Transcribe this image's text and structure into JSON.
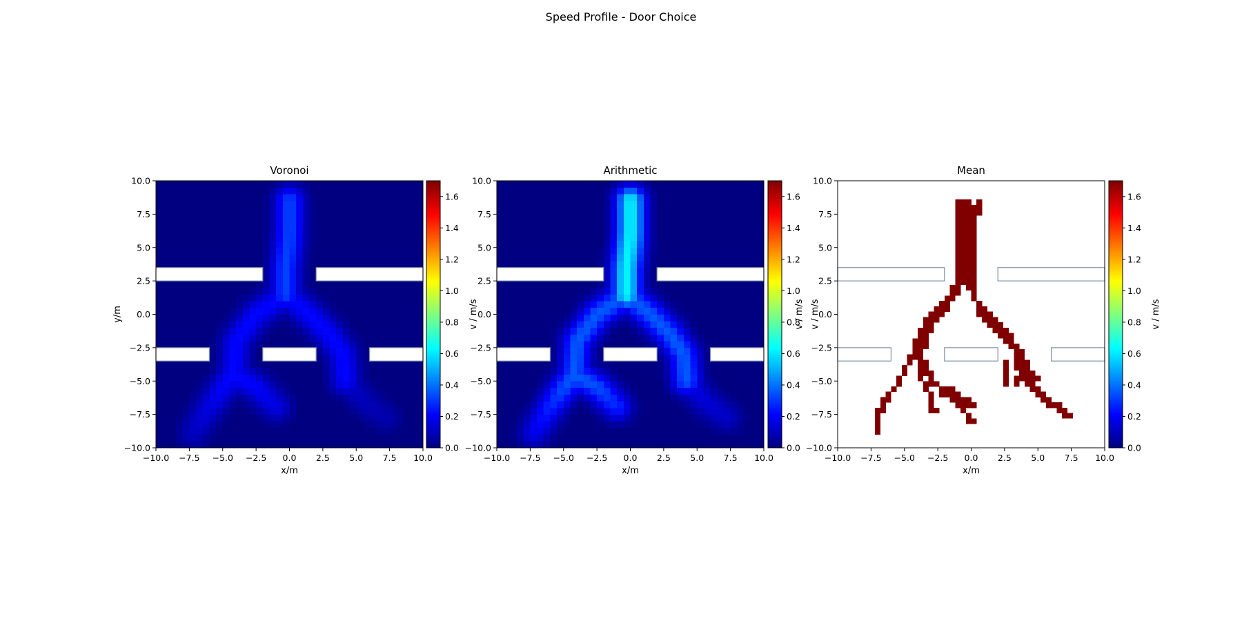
{
  "figure": {
    "suptitle": "Speed Profile - Door Choice"
  },
  "colors": {
    "colormap": "jet",
    "obstacle_edge": "#7f8fa6",
    "obstacle_fill_heatmap": "#ffffff",
    "background": "#ffffff"
  },
  "chart_data": [
    {
      "type": "heatmap",
      "title": "Voronoi",
      "xlabel": "x/m",
      "ylabel": "y/m",
      "colorbar_label": "v / m/s",
      "xlim": [
        -10,
        10
      ],
      "ylim": [
        -10,
        10
      ],
      "clim": [
        0,
        1.7
      ],
      "colorbar_ticks": [
        "0.0",
        "0.2",
        "0.4",
        "0.6",
        "0.8",
        "1.0",
        "1.2",
        "1.4",
        "1.6"
      ],
      "xticks": [
        "−10.0",
        "−7.5",
        "−5.0",
        "−2.5",
        "0.0",
        "2.5",
        "5.0",
        "7.5",
        "10.0"
      ],
      "yticks": [
        "−10.0",
        "−7.5",
        "−5.0",
        "−2.5",
        "0.0",
        "2.5",
        "5.0",
        "7.5",
        "10.0"
      ],
      "obstacles_filled": true,
      "trunk_peak_speed": 0.32,
      "branch_speed": 0.22,
      "tail_speed": 0.12
    },
    {
      "type": "heatmap",
      "title": "Arithmetic",
      "xlabel": "x/m",
      "ylabel": "",
      "colorbar_label": "v / m/s",
      "xlim": [
        -10,
        10
      ],
      "ylim": [
        -10,
        10
      ],
      "clim": [
        0,
        1.7
      ],
      "colorbar_ticks": [
        "0.0",
        "0.2",
        "0.4",
        "0.6",
        "0.8",
        "1.0",
        "1.2",
        "1.4",
        "1.6"
      ],
      "xticks": [
        "−10.0",
        "−7.5",
        "−5.0",
        "−2.5",
        "0.0",
        "2.5",
        "5.0",
        "7.5",
        "10.0"
      ],
      "yticks": [
        "−10.0",
        "−7.5",
        "−5.0",
        "−2.5",
        "0.0",
        "2.5",
        "5.0",
        "7.5",
        "10.0"
      ],
      "obstacles_filled": true,
      "trunk_peak_speed": 0.62,
      "branch_speed": 0.36,
      "tail_speed": 0.18
    },
    {
      "type": "heatmap",
      "title": "Mean",
      "xlabel": "x/m",
      "ylabel": "v / m/s",
      "colorbar_label": "v / m/s",
      "xlim": [
        -10,
        10
      ],
      "ylim": [
        -10,
        10
      ],
      "clim": [
        0,
        1.7
      ],
      "colorbar_ticks": [
        "0.0",
        "0.2",
        "0.4",
        "0.6",
        "0.8",
        "1.0",
        "1.2",
        "1.4",
        "1.6"
      ],
      "xticks": [
        "−10.0",
        "−7.5",
        "−5.0",
        "−2.5",
        "0.0",
        "2.5",
        "5.0",
        "7.5",
        "10.0"
      ],
      "yticks": [
        "−10.0",
        "−7.5",
        "−5.0",
        "−2.5",
        "0.0",
        "2.5",
        "5.0",
        "7.5",
        "10.0"
      ],
      "obstacles_filled": false,
      "cell_value": 1.7
    }
  ],
  "geometry_world": {
    "grid_n": 40,
    "obstacles": [
      {
        "x0": -10,
        "x1": -2,
        "y0": 2.5,
        "y1": 3.5
      },
      {
        "x0": 2,
        "x1": 10,
        "y0": 2.5,
        "y1": 3.5
      },
      {
        "x0": -10,
        "x1": -6,
        "y0": -3.5,
        "y1": -2.5
      },
      {
        "x0": -2,
        "x1": 2,
        "y0": -3.5,
        "y1": -2.5
      },
      {
        "x0": 6,
        "x1": 10,
        "y0": -3.5,
        "y1": -2.5
      }
    ],
    "paths": [
      {
        "points": [
          [
            0,
            8.5
          ],
          [
            0,
            6
          ],
          [
            -0.3,
            3.5
          ],
          [
            -0.3,
            1.5
          ]
        ],
        "role": "trunk"
      },
      {
        "points": [
          [
            -0.3,
            1.5
          ],
          [
            -2.5,
            0
          ],
          [
            -4,
            -2
          ],
          [
            -4.2,
            -4.5
          ],
          [
            -6,
            -7
          ],
          [
            -7.2,
            -9
          ]
        ],
        "role": "branch"
      },
      {
        "points": [
          [
            -4.2,
            -4.5
          ],
          [
            -2.5,
            -5.5
          ],
          [
            -1,
            -7
          ]
        ],
        "role": "branch"
      },
      {
        "points": [
          [
            -0.3,
            1.5
          ],
          [
            1.5,
            0
          ],
          [
            3,
            -1.5
          ],
          [
            4,
            -3
          ],
          [
            4.2,
            -5
          ]
        ],
        "role": "branch"
      },
      {
        "points": [
          [
            4.2,
            -5
          ],
          [
            5.8,
            -6.8
          ],
          [
            7.2,
            -7.8
          ]
        ],
        "role": "tail"
      }
    ],
    "mean_cells": [
      [
        -1.2,
        8.2
      ],
      [
        -0.8,
        8.2
      ],
      [
        -0.4,
        8.2
      ],
      [
        0.4,
        8.2
      ],
      [
        -1.2,
        7.8
      ],
      [
        -0.8,
        7.8
      ],
      [
        -0.4,
        7.8
      ],
      [
        0,
        7.8
      ],
      [
        0.4,
        7.8
      ],
      [
        -1.2,
        7.4
      ],
      [
        -0.8,
        7.4
      ],
      [
        -0.4,
        7.4
      ],
      [
        0,
        7.4
      ],
      [
        0.4,
        7.4
      ],
      [
        -1.2,
        7.0
      ],
      [
        -0.8,
        7.0
      ],
      [
        -0.4,
        7.0
      ],
      [
        0,
        7.0
      ],
      [
        -1.2,
        6.6
      ],
      [
        -0.8,
        6.6
      ],
      [
        -0.4,
        6.6
      ],
      [
        0,
        6.6
      ],
      [
        -1.2,
        6.2
      ],
      [
        -0.8,
        6.2
      ],
      [
        -0.4,
        6.2
      ],
      [
        0,
        6.2
      ],
      [
        -1.2,
        5.8
      ],
      [
        -0.8,
        5.8
      ],
      [
        -0.4,
        5.8
      ],
      [
        0,
        5.8
      ],
      [
        -1.2,
        5.4
      ],
      [
        -0.8,
        5.4
      ],
      [
        -0.4,
        5.4
      ],
      [
        0,
        5.4
      ],
      [
        -1.2,
        5.0
      ],
      [
        -0.8,
        5.0
      ],
      [
        -0.4,
        5.0
      ],
      [
        0,
        5.0
      ],
      [
        -1.2,
        4.6
      ],
      [
        -0.8,
        4.6
      ],
      [
        -0.4,
        4.6
      ],
      [
        0,
        4.6
      ],
      [
        -1.2,
        4.2
      ],
      [
        -0.8,
        4.2
      ],
      [
        -0.4,
        4.2
      ],
      [
        0,
        4.2
      ],
      [
        -1.2,
        3.8
      ],
      [
        -0.8,
        3.8
      ],
      [
        -0.4,
        3.8
      ],
      [
        0,
        3.8
      ],
      [
        -1.2,
        3.4
      ],
      [
        -0.8,
        3.4
      ],
      [
        -0.4,
        3.4
      ],
      [
        0,
        3.4
      ],
      [
        -1.2,
        3.0
      ],
      [
        -0.8,
        3.0
      ],
      [
        -0.4,
        3.0
      ],
      [
        0,
        3.0
      ],
      [
        -1.2,
        2.6
      ],
      [
        -0.8,
        2.6
      ],
      [
        -0.4,
        2.6
      ],
      [
        0,
        2.6
      ],
      [
        -1.2,
        2.2
      ],
      [
        -0.8,
        2.2
      ],
      [
        -0.4,
        2.2
      ],
      [
        0,
        2.2
      ],
      [
        -1.6,
        1.8
      ],
      [
        -1.2,
        1.8
      ],
      [
        -0.4,
        1.8
      ],
      [
        0,
        1.8
      ],
      [
        -1.6,
        1.4
      ],
      [
        -1.2,
        1.4
      ],
      [
        0,
        1.4
      ],
      [
        -2.0,
        1.0
      ],
      [
        -1.6,
        1.0
      ],
      [
        0,
        1.0
      ],
      [
        -2.4,
        0.6
      ],
      [
        -2.0,
        0.6
      ],
      [
        0.4,
        0.6
      ],
      [
        -2.8,
        0.2
      ],
      [
        -2.4,
        0.2
      ],
      [
        -2.0,
        0.2
      ],
      [
        0.4,
        0.2
      ],
      [
        0.8,
        0.2
      ],
      [
        -3.2,
        -0.2
      ],
      [
        -2.8,
        -0.2
      ],
      [
        -2.4,
        -0.2
      ],
      [
        0.4,
        -0.2
      ],
      [
        0.8,
        -0.2
      ],
      [
        1.2,
        -0.2
      ],
      [
        -3.6,
        -0.6
      ],
      [
        -3.2,
        -0.6
      ],
      [
        -2.8,
        -0.6
      ],
      [
        0.8,
        -0.6
      ],
      [
        1.2,
        -0.6
      ],
      [
        1.6,
        -0.6
      ],
      [
        -3.6,
        -1.0
      ],
      [
        -3.2,
        -1.0
      ],
      [
        1.2,
        -1.0
      ],
      [
        1.6,
        -1.0
      ],
      [
        2.0,
        -1.0
      ],
      [
        -4.0,
        -1.4
      ],
      [
        -3.6,
        -1.4
      ],
      [
        -3.2,
        -1.4
      ],
      [
        1.6,
        -1.4
      ],
      [
        2.0,
        -1.4
      ],
      [
        2.4,
        -1.4
      ],
      [
        -4.0,
        -1.8
      ],
      [
        -3.6,
        -1.8
      ],
      [
        2.0,
        -1.8
      ],
      [
        2.4,
        -1.8
      ],
      [
        2.8,
        -1.8
      ],
      [
        -4.4,
        -2.2
      ],
      [
        -4.0,
        -2.2
      ],
      [
        -3.6,
        -2.2
      ],
      [
        2.4,
        -2.2
      ],
      [
        2.8,
        -2.2
      ],
      [
        -4.4,
        -2.6
      ],
      [
        -4.0,
        -2.6
      ],
      [
        -3.6,
        -2.6
      ],
      [
        2.8,
        -2.6
      ],
      [
        3.2,
        -2.6
      ],
      [
        -4.4,
        -3.0
      ],
      [
        -4.0,
        -3.0
      ],
      [
        3.2,
        -3.0
      ],
      [
        3.6,
        -3.0
      ],
      [
        -4.8,
        -3.4
      ],
      [
        -4.4,
        -3.4
      ],
      [
        -4.0,
        -3.4
      ],
      [
        3.2,
        -3.4
      ],
      [
        3.6,
        -3.4
      ],
      [
        -4.8,
        -3.8
      ],
      [
        -4.0,
        -3.8
      ],
      [
        -3.6,
        -3.8
      ],
      [
        2.4,
        -3.8
      ],
      [
        3.2,
        -3.8
      ],
      [
        3.6,
        -3.8
      ],
      [
        4.0,
        -3.8
      ],
      [
        -5.2,
        -4.2
      ],
      [
        -4.0,
        -4.2
      ],
      [
        -3.6,
        -4.2
      ],
      [
        2.4,
        -4.2
      ],
      [
        3.2,
        -4.2
      ],
      [
        3.6,
        -4.2
      ],
      [
        4.0,
        -4.2
      ],
      [
        -5.2,
        -4.6
      ],
      [
        -4.0,
        -4.6
      ],
      [
        -3.6,
        -4.6
      ],
      [
        -3.2,
        -4.6
      ],
      [
        2.4,
        -4.6
      ],
      [
        3.6,
        -4.6
      ],
      [
        4.0,
        -4.6
      ],
      [
        4.4,
        -4.6
      ],
      [
        -5.6,
        -5.0
      ],
      [
        -4.0,
        -5.0
      ],
      [
        -3.2,
        -5.0
      ],
      [
        2.4,
        -5.0
      ],
      [
        3.2,
        -5.0
      ],
      [
        3.6,
        -5.0
      ],
      [
        4.0,
        -5.0
      ],
      [
        4.4,
        -5.0
      ],
      [
        4.8,
        -5.0
      ],
      [
        -5.6,
        -5.4
      ],
      [
        -3.6,
        -5.4
      ],
      [
        -3.2,
        -5.4
      ],
      [
        -2.8,
        -5.4
      ],
      [
        2.4,
        -5.4
      ],
      [
        3.2,
        -5.4
      ],
      [
        4.0,
        -5.4
      ],
      [
        4.4,
        -5.4
      ],
      [
        -6.0,
        -5.8
      ],
      [
        -3.6,
        -5.8
      ],
      [
        -2.4,
        -5.8
      ],
      [
        -2.0,
        -5.8
      ],
      [
        -1.6,
        -5.8
      ],
      [
        4.4,
        -5.8
      ],
      [
        4.8,
        -5.8
      ],
      [
        -6.4,
        -6.2
      ],
      [
        -3.2,
        -6.2
      ],
      [
        -2.4,
        -6.2
      ],
      [
        -2.0,
        -6.2
      ],
      [
        -1.6,
        -6.2
      ],
      [
        -1.2,
        -6.2
      ],
      [
        4.8,
        -6.2
      ],
      [
        5.2,
        -6.2
      ],
      [
        -6.8,
        -6.6
      ],
      [
        -6.4,
        -6.6
      ],
      [
        -3.2,
        -6.6
      ],
      [
        -1.6,
        -6.6
      ],
      [
        -1.2,
        -6.6
      ],
      [
        -0.8,
        -6.6
      ],
      [
        -0.4,
        -6.6
      ],
      [
        5.2,
        -6.6
      ],
      [
        5.6,
        -6.6
      ],
      [
        -6.8,
        -7.0
      ],
      [
        -3.2,
        -7.0
      ],
      [
        -1.2,
        -7.0
      ],
      [
        -0.8,
        -7.0
      ],
      [
        -0.4,
        -7.0
      ],
      [
        0,
        -7.0
      ],
      [
        5.6,
        -7.0
      ],
      [
        6.0,
        -7.0
      ],
      [
        6.4,
        -7.0
      ],
      [
        -7.2,
        -7.4
      ],
      [
        -6.8,
        -7.4
      ],
      [
        -3.2,
        -7.4
      ],
      [
        -2.8,
        -7.4
      ],
      [
        -0.8,
        -7.4
      ],
      [
        6.4,
        -7.4
      ],
      [
        6.8,
        -7.4
      ],
      [
        -7.2,
        -7.8
      ],
      [
        -0.4,
        -7.8
      ],
      [
        6.8,
        -7.8
      ],
      [
        7.2,
        -7.8
      ],
      [
        -7.2,
        -8.2
      ],
      [
        -0.4,
        -8.2
      ],
      [
        0,
        -8.2
      ],
      [
        -7.2,
        -8.6
      ],
      [
        -7.2,
        -9.0
      ]
    ]
  }
}
